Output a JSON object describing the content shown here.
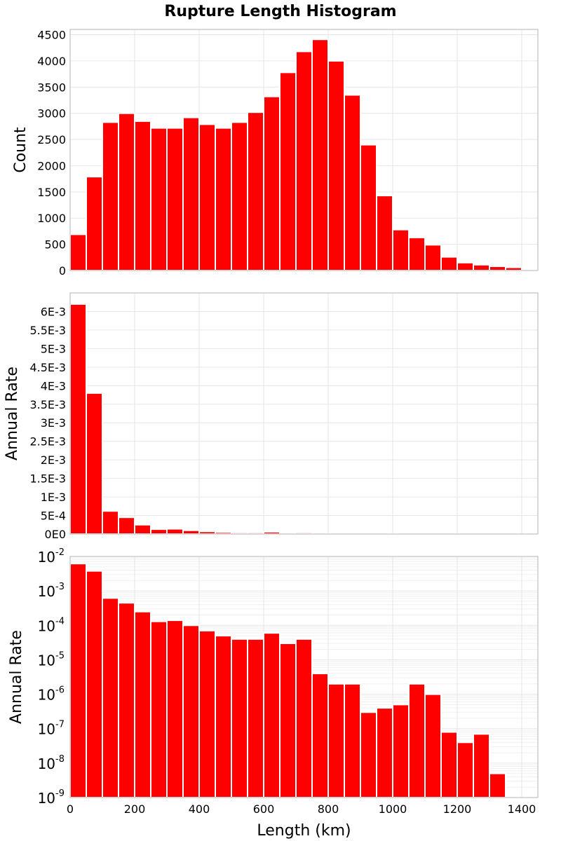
{
  "chart_data": [
    {
      "type": "bar",
      "panel": "count",
      "title": "Rupture Length Histogram",
      "ylabel": "Count",
      "xlabel": "",
      "scale": "linear",
      "ylim": [
        0,
        4600
      ],
      "yticks": [
        {
          "value": 0,
          "label": "0"
        },
        {
          "value": 500,
          "label": "500"
        },
        {
          "value": 1000,
          "label": "1000"
        },
        {
          "value": 1500,
          "label": "1500"
        },
        {
          "value": 2000,
          "label": "2000"
        },
        {
          "value": 2500,
          "label": "2500"
        },
        {
          "value": 3000,
          "label": "3000"
        },
        {
          "value": 3500,
          "label": "3500"
        },
        {
          "value": 4000,
          "label": "4000"
        },
        {
          "value": 4500,
          "label": "4500"
        }
      ],
      "bin_centers": [
        25,
        75,
        125,
        175,
        225,
        275,
        325,
        375,
        425,
        475,
        525,
        575,
        625,
        675,
        725,
        775,
        825,
        875,
        925,
        975,
        1025,
        1075,
        1125,
        1175,
        1225,
        1275,
        1325,
        1375,
        1425
      ],
      "values": [
        690,
        1790,
        2830,
        3000,
        2850,
        2720,
        2720,
        2920,
        2790,
        2720,
        2830,
        3020,
        3320,
        3780,
        4180,
        4410,
        4000,
        3350,
        2400,
        1430,
        780,
        630,
        490,
        260,
        150,
        110,
        80,
        60,
        15
      ],
      "color": "#ff0000"
    },
    {
      "type": "bar",
      "panel": "rate-linear",
      "ylabel": "Annual Rate",
      "xlabel": "",
      "scale": "linear",
      "ylim": [
        0,
        0.0065
      ],
      "yticks": [
        {
          "value": 0,
          "label": "0E0"
        },
        {
          "value": 0.0005,
          "label": "5E-4"
        },
        {
          "value": 0.001,
          "label": "1E-3"
        },
        {
          "value": 0.0015,
          "label": "1.5E-3"
        },
        {
          "value": 0.002,
          "label": "2E-3"
        },
        {
          "value": 0.0025,
          "label": "2.5E-3"
        },
        {
          "value": 0.003,
          "label": "3E-3"
        },
        {
          "value": 0.0035,
          "label": "3.5E-3"
        },
        {
          "value": 0.004,
          "label": "4E-3"
        },
        {
          "value": 0.0045,
          "label": "4.5E-3"
        },
        {
          "value": 0.005,
          "label": "5E-3"
        },
        {
          "value": 0.0055,
          "label": "5.5E-3"
        },
        {
          "value": 0.006,
          "label": "6E-3"
        }
      ],
      "bin_centers": [
        25,
        75,
        125,
        175,
        225,
        275,
        325,
        375,
        425,
        475,
        525,
        575,
        625,
        675,
        725,
        775,
        825,
        875,
        925,
        975,
        1025,
        1075,
        1125,
        1175,
        1225,
        1275,
        1325,
        1375,
        1425
      ],
      "values": [
        0.0062,
        0.0038,
        0.00062,
        0.00045,
        0.00025,
        0.00013,
        0.00014,
        0.0001,
        7e-05,
        5e-05,
        4e-05,
        4e-05,
        6e-05,
        3e-05,
        4e-05,
        4e-06,
        2e-06,
        2e-06,
        3e-07,
        4e-07,
        5e-07,
        2e-06,
        1e-06,
        8e-08,
        4e-08,
        7e-08,
        5e-09,
        0,
        0
      ],
      "color": "#ff0000"
    },
    {
      "type": "bar",
      "panel": "rate-log",
      "ylabel": "Annual Rate",
      "xlabel": "Length (km)",
      "scale": "log",
      "ylim": [
        1e-09,
        0.01
      ],
      "yticks": [
        {
          "value": 0.01,
          "base": "10",
          "exp": "-2"
        },
        {
          "value": 0.001,
          "base": "10",
          "exp": "-3"
        },
        {
          "value": 0.0001,
          "base": "10",
          "exp": "-4"
        },
        {
          "value": 1e-05,
          "base": "10",
          "exp": "-5"
        },
        {
          "value": 1e-06,
          "base": "10",
          "exp": "-6"
        },
        {
          "value": 1e-07,
          "base": "10",
          "exp": "-7"
        },
        {
          "value": 1e-08,
          "base": "10",
          "exp": "-8"
        },
        {
          "value": 1e-09,
          "base": "10",
          "exp": "-9"
        }
      ],
      "xlim": [
        0,
        1450
      ],
      "xticks": [
        {
          "value": 0,
          "label": "0"
        },
        {
          "value": 200,
          "label": "200"
        },
        {
          "value": 400,
          "label": "400"
        },
        {
          "value": 600,
          "label": "600"
        },
        {
          "value": 800,
          "label": "800"
        },
        {
          "value": 1000,
          "label": "1000"
        },
        {
          "value": 1200,
          "label": "1200"
        },
        {
          "value": 1400,
          "label": "1400"
        }
      ],
      "bin_centers": [
        25,
        75,
        125,
        175,
        225,
        275,
        325,
        375,
        425,
        475,
        525,
        575,
        625,
        675,
        725,
        775,
        825,
        875,
        925,
        975,
        1025,
        1075,
        1125,
        1175,
        1225,
        1275,
        1325,
        1375,
        1425
      ],
      "values": [
        0.0062,
        0.0038,
        0.00062,
        0.00045,
        0.00025,
        0.00013,
        0.00014,
        0.0001,
        7e-05,
        5e-05,
        4e-05,
        4e-05,
        6e-05,
        3e-05,
        4e-05,
        4e-06,
        2e-06,
        2e-06,
        3e-07,
        4e-07,
        5e-07,
        2e-06,
        1e-06,
        8e-08,
        4e-08,
        7e-08,
        5e-09,
        0,
        0
      ],
      "color": "#ff0000"
    }
  ],
  "shared": {
    "bin_width": 50,
    "xlim": [
      0,
      1450
    ]
  }
}
